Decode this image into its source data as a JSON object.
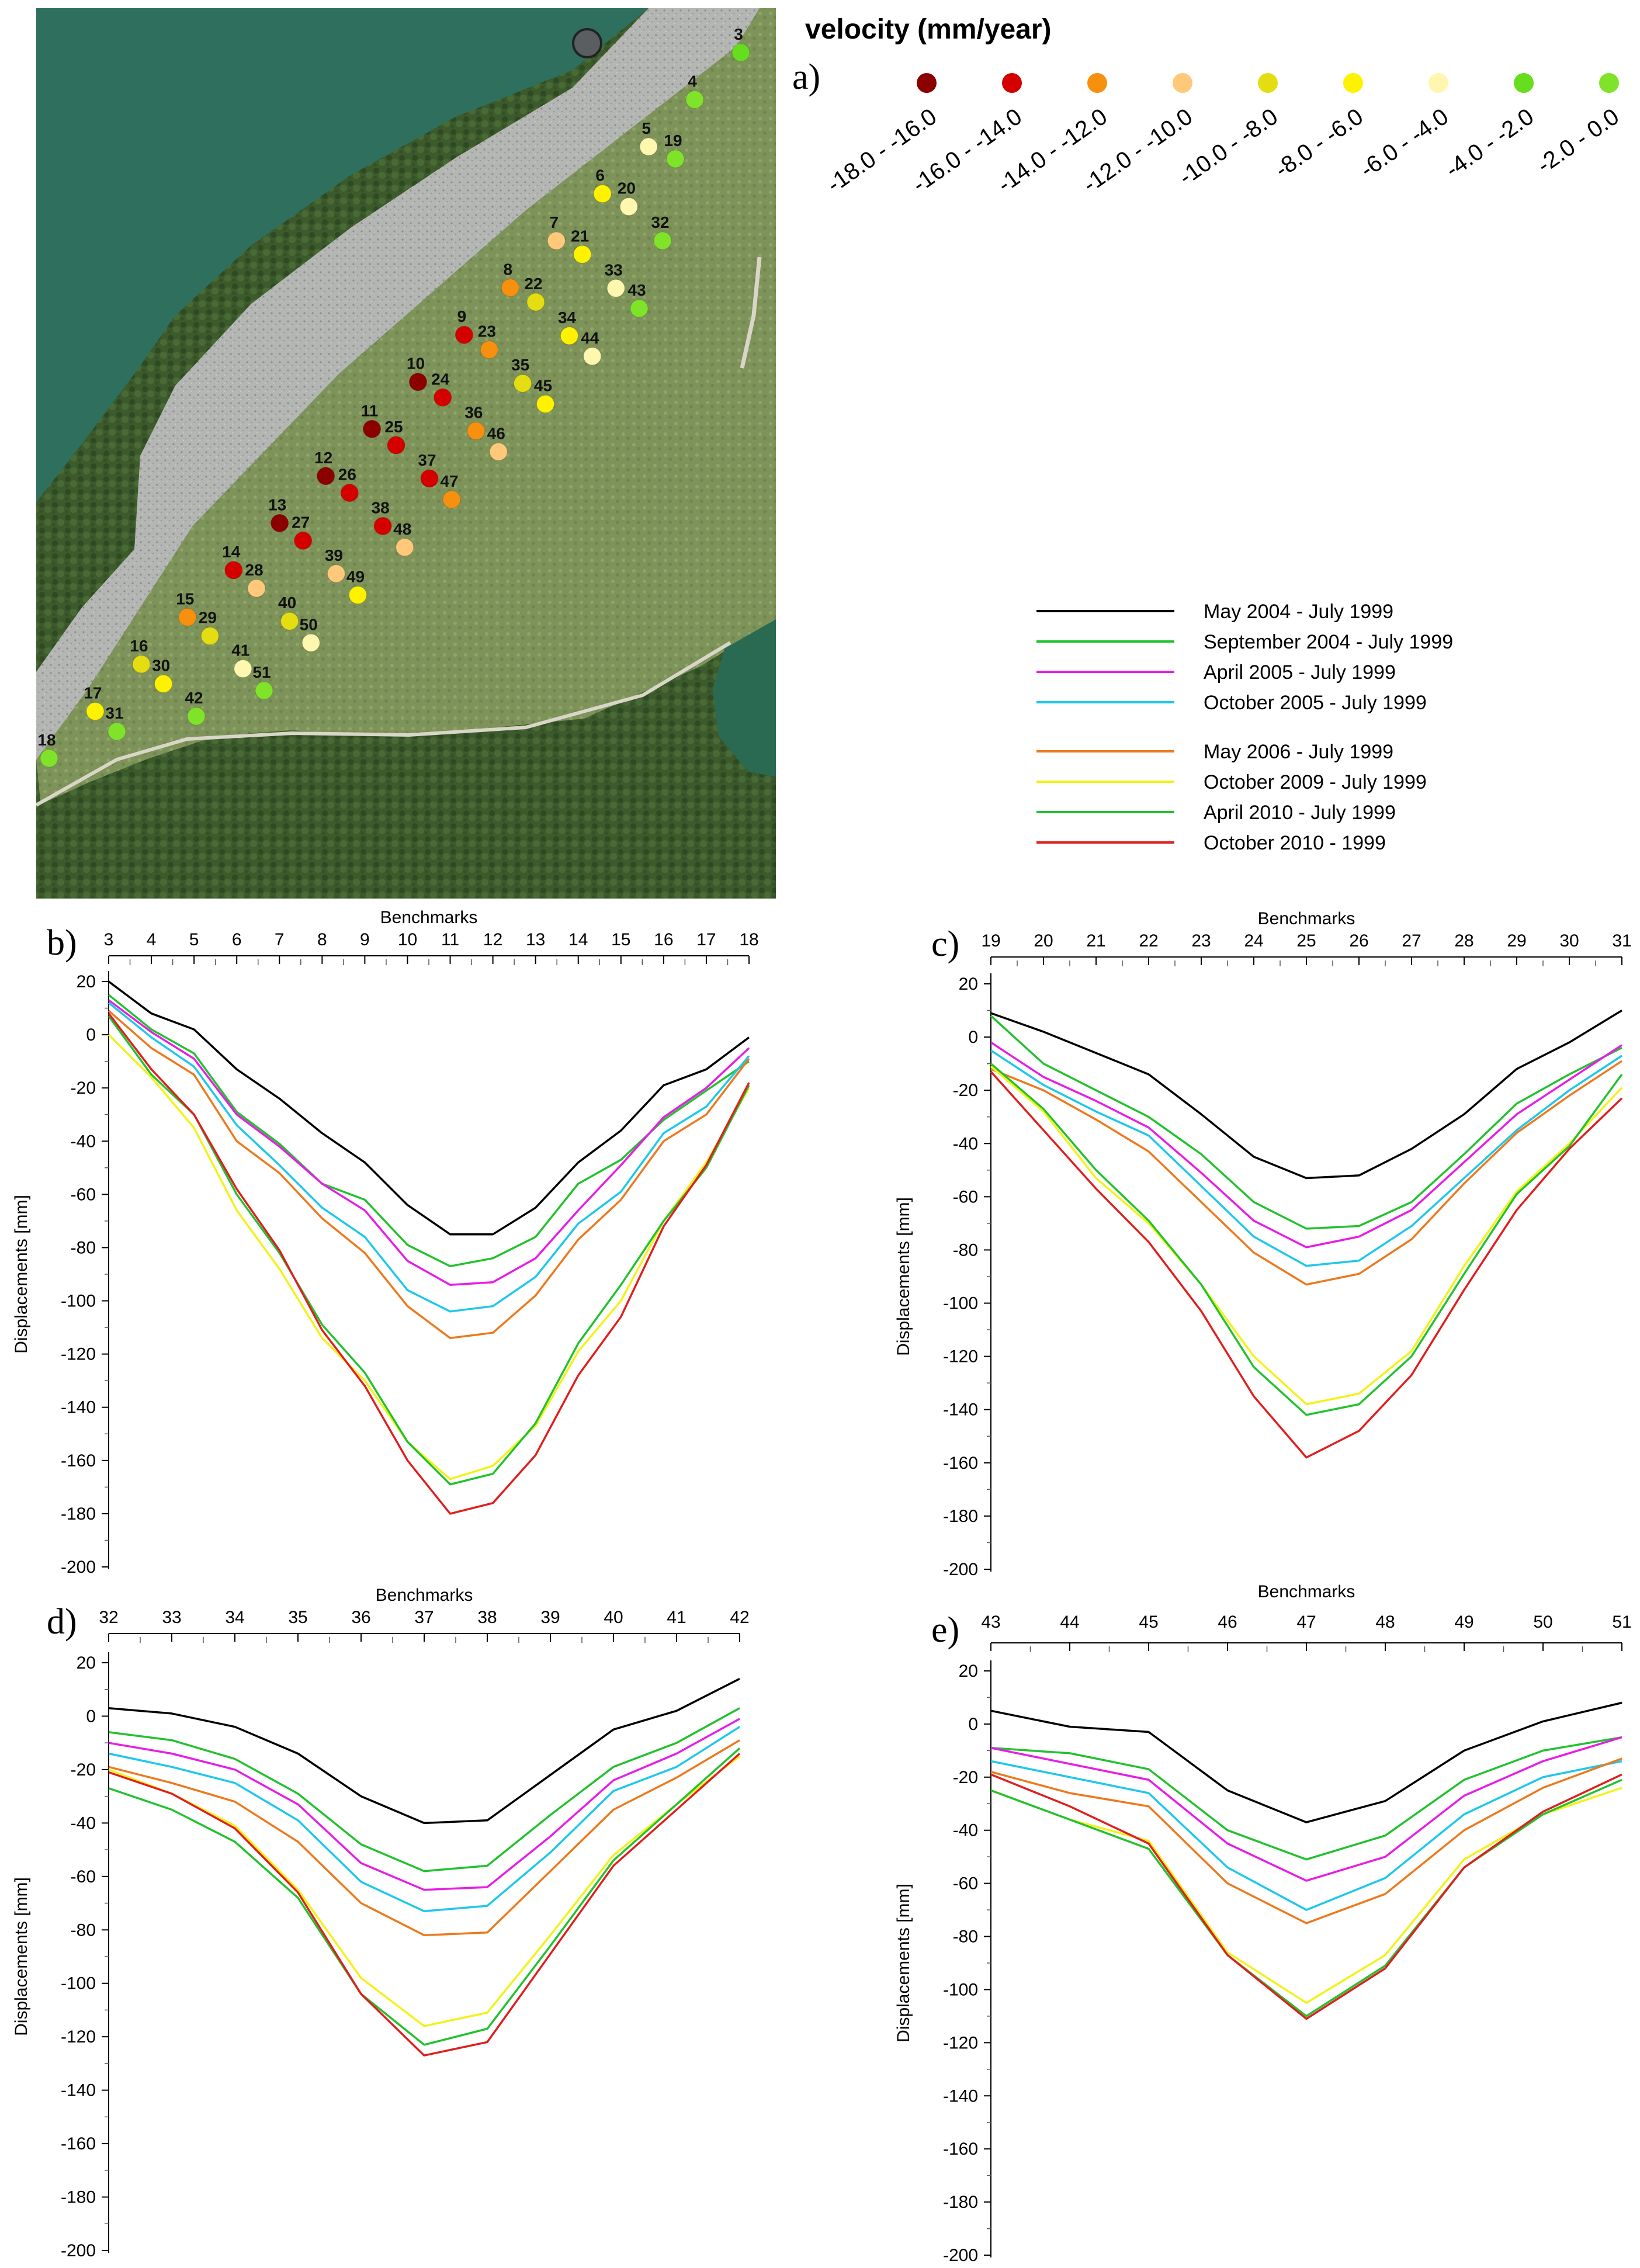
{
  "map": {
    "panel_label": "a)",
    "velocity_title": "velocity (mm/year)",
    "velocity_classes": [
      {
        "range": "-18.0 - -16.0",
        "color": "#8b0000"
      },
      {
        "range": "-16.0 - -14.0",
        "color": "#d40000"
      },
      {
        "range": "-14.0 - -12.0",
        "color": "#f7900f"
      },
      {
        "range": "-12.0 - -10.0",
        "color": "#ffc87a"
      },
      {
        "range": "-10.0 - -8.0",
        "color": "#e4dd12"
      },
      {
        "range": "-8.0 - -6.0",
        "color": "#fff200"
      },
      {
        "range": "-6.0 - -4.0",
        "color": "#fff6b0"
      },
      {
        "range": "-4.0 - -2.0",
        "color": "#66dd1e"
      },
      {
        "range": "-2.0 - 0.0",
        "color": "#7fe32a"
      }
    ],
    "benchmarks": [
      {
        "id": "3",
        "cls": 7
      },
      {
        "id": "4",
        "cls": 8
      },
      {
        "id": "5",
        "cls": 6
      },
      {
        "id": "6",
        "cls": 5
      },
      {
        "id": "7",
        "cls": 3
      },
      {
        "id": "8",
        "cls": 2
      },
      {
        "id": "9",
        "cls": 1
      },
      {
        "id": "10",
        "cls": 0
      },
      {
        "id": "11",
        "cls": 0
      },
      {
        "id": "12",
        "cls": 0
      },
      {
        "id": "13",
        "cls": 0
      },
      {
        "id": "14",
        "cls": 1
      },
      {
        "id": "15",
        "cls": 2
      },
      {
        "id": "16",
        "cls": 4
      },
      {
        "id": "17",
        "cls": 5
      },
      {
        "id": "18",
        "cls": 8
      },
      {
        "id": "19",
        "cls": 8
      },
      {
        "id": "20",
        "cls": 6
      },
      {
        "id": "21",
        "cls": 5
      },
      {
        "id": "22",
        "cls": 4
      },
      {
        "id": "23",
        "cls": 2
      },
      {
        "id": "24",
        "cls": 1
      },
      {
        "id": "25",
        "cls": 1
      },
      {
        "id": "26",
        "cls": 1
      },
      {
        "id": "27",
        "cls": 1
      },
      {
        "id": "28",
        "cls": 3
      },
      {
        "id": "29",
        "cls": 4
      },
      {
        "id": "30",
        "cls": 5
      },
      {
        "id": "31",
        "cls": 8
      },
      {
        "id": "32",
        "cls": 8
      },
      {
        "id": "33",
        "cls": 6
      },
      {
        "id": "34",
        "cls": 5
      },
      {
        "id": "35",
        "cls": 4
      },
      {
        "id": "36",
        "cls": 2
      },
      {
        "id": "37",
        "cls": 1
      },
      {
        "id": "38",
        "cls": 1
      },
      {
        "id": "39",
        "cls": 3
      },
      {
        "id": "40",
        "cls": 4
      },
      {
        "id": "41",
        "cls": 6
      },
      {
        "id": "42",
        "cls": 8
      },
      {
        "id": "43",
        "cls": 8
      },
      {
        "id": "44",
        "cls": 6
      },
      {
        "id": "45",
        "cls": 5
      },
      {
        "id": "46",
        "cls": 3
      },
      {
        "id": "47",
        "cls": 2
      },
      {
        "id": "48",
        "cls": 3
      },
      {
        "id": "49",
        "cls": 5
      },
      {
        "id": "50",
        "cls": 6
      },
      {
        "id": "51",
        "cls": 8
      }
    ]
  },
  "legend": {
    "group1": [
      {
        "label": "May 2004 - July 1999",
        "color": "#000000"
      },
      {
        "label": "September 2004 - July 1999",
        "color": "#22c22e"
      },
      {
        "label": "April 2005 - July 1999",
        "color": "#e61ee6"
      },
      {
        "label": "October 2005 - July 1999",
        "color": "#1ec8ea"
      }
    ],
    "group2": [
      {
        "label": "May 2006 - July 1999",
        "color": "#ec7a1e"
      },
      {
        "label": "October 2009 - July 1999",
        "color": "#f2f21a"
      },
      {
        "label": "April 2010 - July 1999",
        "color": "#22c22e"
      },
      {
        "label": "October 2010 - 1999",
        "color": "#e01f1f"
      }
    ]
  },
  "chart_data": [
    {
      "type": "line",
      "panel_label": "b)",
      "xlabel": "Benchmarks",
      "ylabel": "Displacements [mm]",
      "categories": [
        "3",
        "4",
        "5",
        "6",
        "7",
        "8",
        "9",
        "10",
        "11",
        "12",
        "13",
        "14",
        "15",
        "16",
        "17",
        "18"
      ],
      "yticks": [
        "20",
        "0",
        "-20",
        "-40",
        "-60",
        "-80",
        "-100",
        "-120",
        "-140",
        "-160",
        "-180",
        "-200"
      ],
      "ylim": [
        -200,
        20
      ],
      "series": [
        {
          "name": "May 2004 - July 1999",
          "color": "#000000",
          "values": [
            20,
            8,
            2,
            -13,
            -24,
            -37,
            -48,
            -64,
            -75,
            -75,
            -65,
            -48,
            -36,
            -19,
            -13,
            -1
          ]
        },
        {
          "name": "September 2004 - July 1999",
          "color": "#22c22e",
          "values": [
            15,
            2,
            -7,
            -29,
            -41,
            -56,
            -62,
            -79,
            -87,
            -84,
            -76,
            -56,
            -47,
            -32,
            -21,
            -10
          ]
        },
        {
          "name": "April 2005 - July 1999",
          "color": "#e61ee6",
          "values": [
            13,
            1,
            -9,
            -30,
            -42,
            -56,
            -66,
            -85,
            -94,
            -93,
            -84,
            -66,
            -49,
            -31,
            -20,
            -5
          ]
        },
        {
          "name": "October 2005 - July 1999",
          "color": "#1ec8ea",
          "values": [
            12,
            -1,
            -12,
            -34,
            -49,
            -65,
            -76,
            -96,
            -104,
            -102,
            -91,
            -71,
            -59,
            -37,
            -27,
            -8
          ]
        },
        {
          "name": "May 2006 - July 1999",
          "color": "#ec7a1e",
          "values": [
            9,
            -5,
            -15,
            -40,
            -52,
            -69,
            -82,
            -102,
            -114,
            -112,
            -98,
            -77,
            -62,
            -40,
            -30,
            -9
          ]
        },
        {
          "name": "October 2009 - July 1999",
          "color": "#f2f21a",
          "values": [
            0,
            -16,
            -35,
            -66,
            -88,
            -114,
            -130,
            -153,
            -167,
            -162,
            -147,
            -119,
            -100,
            -70,
            -48,
            -20
          ]
        },
        {
          "name": "April 2010 - July 1999",
          "color": "#22c22e",
          "values": [
            7,
            -15,
            -30,
            -60,
            -82,
            -109,
            -127,
            -153,
            -169,
            -165,
            -146,
            -116,
            -94,
            -70,
            -50,
            -19
          ]
        },
        {
          "name": "October 2010 - 1999",
          "color": "#e01f1f",
          "values": [
            8,
            -13,
            -30,
            -58,
            -81,
            -111,
            -132,
            -160,
            -180,
            -176,
            -158,
            -128,
            -106,
            -72,
            -49,
            -18
          ]
        }
      ]
    },
    {
      "type": "line",
      "panel_label": "c)",
      "xlabel": "Benchmarks",
      "ylabel": "Displacements [mm]",
      "categories": [
        "19",
        "20",
        "21",
        "22",
        "23",
        "24",
        "25",
        "26",
        "27",
        "28",
        "29",
        "30",
        "31"
      ],
      "yticks": [
        "20",
        "0",
        "-20",
        "-40",
        "-60",
        "-80",
        "-100",
        "-120",
        "-140",
        "-160",
        "-180",
        "-200"
      ],
      "ylim": [
        -200,
        20
      ],
      "series": [
        {
          "name": "May 2004 - July 1999",
          "color": "#000000",
          "values": [
            9,
            2,
            -6,
            -14,
            -29,
            -45,
            -53,
            -52,
            -42,
            -29,
            -12,
            -2,
            10
          ]
        },
        {
          "name": "September 2004 - July 1999",
          "color": "#22c22e",
          "values": [
            8,
            -10,
            -20,
            -30,
            -44,
            -62,
            -72,
            -71,
            -62,
            -44,
            -25,
            -14,
            -4
          ]
        },
        {
          "name": "April 2005 - July 1999",
          "color": "#e61ee6",
          "values": [
            -2,
            -15,
            -24,
            -34,
            -51,
            -69,
            -79,
            -75,
            -65,
            -47,
            -29,
            -16,
            -3
          ]
        },
        {
          "name": "October 2005 - July 1999",
          "color": "#1ec8ea",
          "values": [
            -5,
            -18,
            -28,
            -37,
            -56,
            -75,
            -86,
            -84,
            -71,
            -53,
            -35,
            -20,
            -7
          ]
        },
        {
          "name": "May 2006 - July 1999",
          "color": "#ec7a1e",
          "values": [
            -12,
            -20,
            -31,
            -43,
            -62,
            -81,
            -93,
            -89,
            -76,
            -55,
            -36,
            -22,
            -9
          ]
        },
        {
          "name": "October 2009 - July 1999",
          "color": "#f2f21a",
          "values": [
            -11,
            -28,
            -53,
            -70,
            -93,
            -120,
            -138,
            -134,
            -118,
            -86,
            -58,
            -40,
            -19
          ]
        },
        {
          "name": "April 2010 - July 1999",
          "color": "#22c22e",
          "values": [
            -10,
            -27,
            -50,
            -69,
            -93,
            -124,
            -142,
            -138,
            -120,
            -89,
            -59,
            -41,
            -14
          ]
        },
        {
          "name": "October 2010 - 1999",
          "color": "#e01f1f",
          "values": [
            -13,
            -35,
            -57,
            -77,
            -103,
            -135,
            -158,
            -148,
            -127,
            -95,
            -65,
            -42,
            -23
          ]
        }
      ]
    },
    {
      "type": "line",
      "panel_label": "d)",
      "xlabel": "Benchmarks",
      "ylabel": "Displacements [mm]",
      "categories": [
        "32",
        "33",
        "34",
        "35",
        "36",
        "37",
        "38",
        "39",
        "40",
        "41",
        "42"
      ],
      "yticks": [
        "20",
        "0",
        "-20",
        "-40",
        "-60",
        "-80",
        "-100",
        "-120",
        "-140",
        "-160",
        "-180",
        "-200"
      ],
      "ylim": [
        -200,
        20
      ],
      "series": [
        {
          "name": "May 2004 - July 1999",
          "color": "#000000",
          "values": [
            3,
            1,
            -4,
            -14,
            -30,
            -40,
            -39,
            -22,
            -5,
            2,
            14
          ]
        },
        {
          "name": "September 2004 - July 1999",
          "color": "#22c22e",
          "values": [
            -6,
            -9,
            -16,
            -29,
            -48,
            -58,
            -56,
            -37,
            -19,
            -10,
            3
          ]
        },
        {
          "name": "April 2005 - July 1999",
          "color": "#e61ee6",
          "values": [
            -10,
            -14,
            -20,
            -33,
            -55,
            -65,
            -64,
            -45,
            -24,
            -14,
            -1
          ]
        },
        {
          "name": "October 2005 - July 1999",
          "color": "#1ec8ea",
          "values": [
            -14,
            -19,
            -25,
            -39,
            -62,
            -73,
            -71,
            -51,
            -28,
            -19,
            -4
          ]
        },
        {
          "name": "May 2006 - July 1999",
          "color": "#ec7a1e",
          "values": [
            -19,
            -25,
            -32,
            -47,
            -70,
            -82,
            -81,
            -58,
            -35,
            -23,
            -9
          ]
        },
        {
          "name": "October 2009 - July 1999",
          "color": "#f2f21a",
          "values": [
            -20,
            -29,
            -41,
            -65,
            -98,
            -116,
            -111,
            -82,
            -52,
            -33,
            -15
          ]
        },
        {
          "name": "April 2010 - July 1999",
          "color": "#22c22e",
          "values": [
            -27,
            -35,
            -47,
            -68,
            -104,
            -123,
            -117,
            -86,
            -54,
            -33,
            -12
          ]
        },
        {
          "name": "October 2010 - 1999",
          "color": "#e01f1f",
          "values": [
            -21,
            -29,
            -42,
            -66,
            -104,
            -127,
            -122,
            -89,
            -56,
            -35,
            -14
          ]
        }
      ]
    },
    {
      "type": "line",
      "panel_label": "e)",
      "xlabel": "Benchmarks",
      "ylabel": "Displacements [mm]",
      "categories": [
        "43",
        "44",
        "45",
        "46",
        "47",
        "48",
        "49",
        "50",
        "51"
      ],
      "yticks": [
        "20",
        "0",
        "-20",
        "-40",
        "-60",
        "-80",
        "-100",
        "-120",
        "-140",
        "-160",
        "-180",
        "-200"
      ],
      "ylim": [
        -200,
        20
      ],
      "series": [
        {
          "name": "May 2004 - July 1999",
          "color": "#000000",
          "values": [
            5,
            -1,
            -3,
            -25,
            -37,
            -29,
            -10,
            1,
            8
          ]
        },
        {
          "name": "September 2004 - July 1999",
          "color": "#22c22e",
          "values": [
            -9,
            -11,
            -17,
            -40,
            -51,
            -42,
            -21,
            -10,
            -5
          ]
        },
        {
          "name": "April 2005 - July 1999",
          "color": "#e61ee6",
          "values": [
            -9,
            -15,
            -21,
            -45,
            -59,
            -50,
            -27,
            -14,
            -5
          ]
        },
        {
          "name": "October 2005 - July 1999",
          "color": "#1ec8ea",
          "values": [
            -14,
            -20,
            -26,
            -54,
            -70,
            -58,
            -34,
            -20,
            -14
          ]
        },
        {
          "name": "May 2006 - July 1999",
          "color": "#ec7a1e",
          "values": [
            -18,
            -26,
            -31,
            -60,
            -75,
            -64,
            -40,
            -24,
            -13
          ]
        },
        {
          "name": "October 2009 - July 1999",
          "color": "#f2f21a",
          "values": [
            -25,
            -36,
            -44,
            -86,
            -105,
            -87,
            -51,
            -34,
            -24
          ]
        },
        {
          "name": "April 2010 - July 1999",
          "color": "#22c22e",
          "values": [
            -25,
            -36,
            -47,
            -87,
            -110,
            -91,
            -54,
            -34,
            -21
          ]
        },
        {
          "name": "October 2010 - 1999",
          "color": "#e01f1f",
          "values": [
            -19,
            -31,
            -45,
            -87,
            -111,
            -92,
            -54,
            -33,
            -19
          ]
        }
      ]
    }
  ]
}
